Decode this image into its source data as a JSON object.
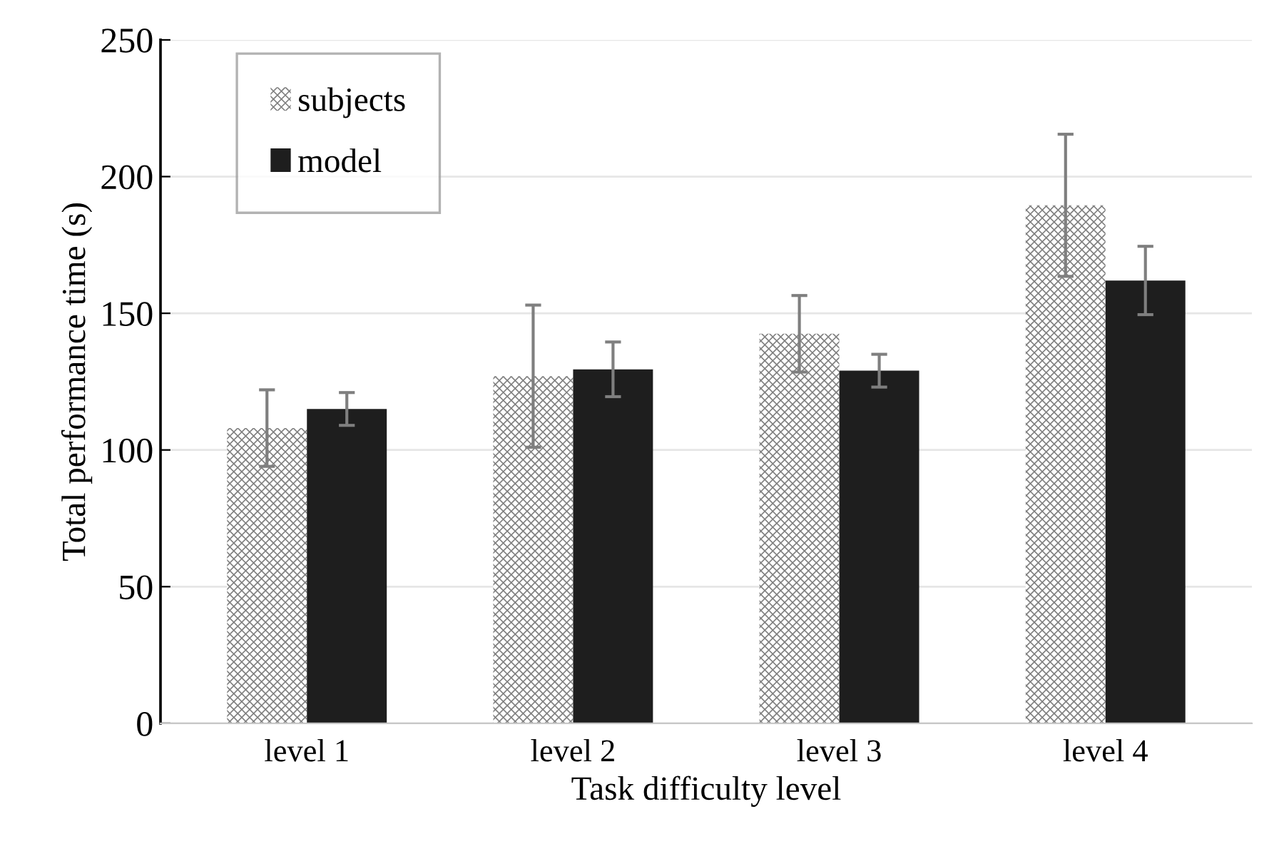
{
  "chart_data": {
    "type": "bar",
    "xlabel": "Task difficulty level",
    "ylabel": "Total performance time (s)",
    "categories": [
      "level 1",
      "level 2",
      "level 3",
      "level 4"
    ],
    "series": [
      {
        "name": "subjects",
        "color": "#808080",
        "values": [
          108,
          127,
          142.5,
          189.5
        ],
        "errors": [
          14,
          26,
          14,
          26
        ]
      },
      {
        "name": "model",
        "color": "#1e1e1e",
        "values": [
          115,
          129.5,
          129,
          162
        ],
        "errors": [
          6,
          10,
          6,
          12.5
        ]
      }
    ],
    "ylim": [
      0,
      250
    ],
    "yticks": [
      0,
      50,
      100,
      150,
      200,
      250
    ],
    "grid": "y",
    "legend": "top left"
  }
}
